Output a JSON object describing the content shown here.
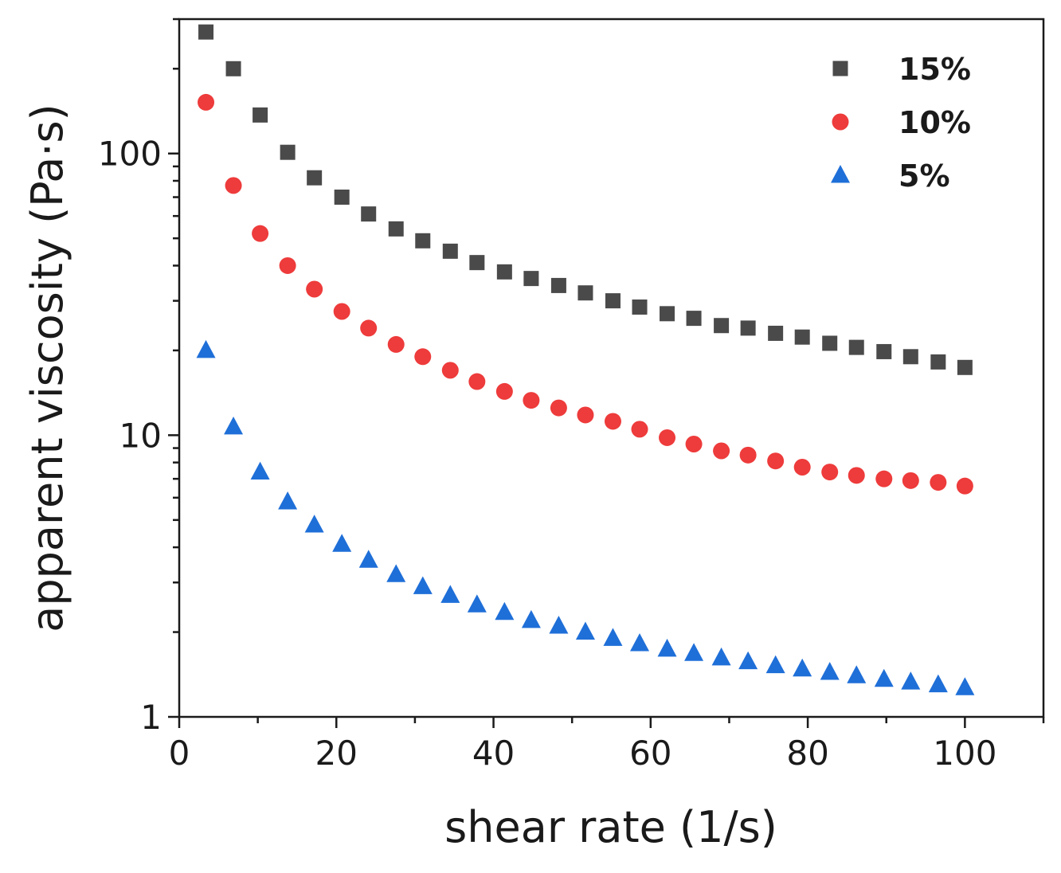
{
  "chart_data": {
    "type": "scatter",
    "xlabel": "shear rate (1/s)",
    "ylabel": "apparent viscosity  (Pa·s)",
    "xlim": [
      0,
      110
    ],
    "ylim": [
      1,
      300
    ],
    "yscale": "log",
    "x_ticks": [
      0,
      20,
      40,
      60,
      80,
      100
    ],
    "x_tick_labels": [
      "0",
      "20",
      "40",
      "60",
      "80",
      "100"
    ],
    "y_ticks": [
      1,
      10,
      100
    ],
    "y_tick_labels": [
      "1",
      "10",
      "100"
    ],
    "grid": false,
    "legend_position": "top-right",
    "x": [
      3.4,
      6.9,
      10.3,
      13.8,
      17.2,
      20.7,
      24.1,
      27.6,
      31.0,
      34.5,
      37.9,
      41.4,
      44.8,
      48.3,
      51.7,
      55.2,
      58.6,
      62.1,
      65.5,
      69.0,
      72.4,
      75.9,
      79.3,
      82.8,
      86.2,
      89.7,
      93.1,
      96.6,
      100.0
    ],
    "series": [
      {
        "name": "15%",
        "marker": "square",
        "color": "#4a4a4a",
        "values": [
          270,
          200,
          137,
          101,
          82,
          70,
          61,
          54,
          49,
          45,
          41,
          38,
          36,
          34,
          32,
          30,
          28.5,
          27,
          26,
          24.5,
          24,
          23,
          22.3,
          21.2,
          20.5,
          19.8,
          19,
          18.2,
          17.4
        ]
      },
      {
        "name": "10%",
        "marker": "circle",
        "color": "#ee3b3b",
        "values": [
          152,
          77,
          52,
          40,
          33,
          27.5,
          24,
          21,
          19,
          17,
          15.5,
          14.3,
          13.3,
          12.5,
          11.8,
          11.2,
          10.5,
          9.8,
          9.3,
          8.8,
          8.5,
          8.1,
          7.7,
          7.4,
          7.2,
          7.0,
          6.9,
          6.8,
          6.6
        ]
      },
      {
        "name": "5%",
        "marker": "triangle",
        "color": "#1f6fd8",
        "values": [
          20,
          10.7,
          7.4,
          5.8,
          4.8,
          4.1,
          3.6,
          3.2,
          2.9,
          2.7,
          2.5,
          2.35,
          2.2,
          2.1,
          2.0,
          1.9,
          1.82,
          1.74,
          1.68,
          1.62,
          1.57,
          1.52,
          1.48,
          1.44,
          1.4,
          1.36,
          1.33,
          1.3,
          1.27
        ]
      }
    ]
  }
}
